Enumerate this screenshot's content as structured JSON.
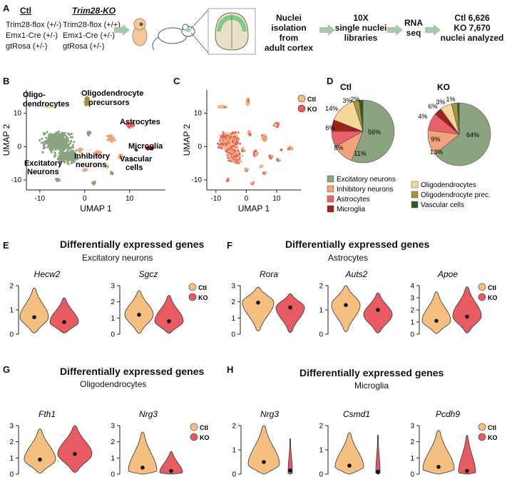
{
  "panels": {
    "A": "A",
    "B": "B",
    "C": "C",
    "D": "D",
    "E": "E",
    "F": "F",
    "G": "G",
    "H": "H"
  },
  "genotype": {
    "ctl_title": "Ctl",
    "ko_title": "Trim28-KO",
    "ctl_lines": [
      "Trim28-flox (+/-)",
      "Emx1-Cre (+/-)",
      "gtRosa (+/-)"
    ],
    "ko_lines": [
      "Trim28-flox (+/+)",
      "Emx1-Cre (+/-)",
      "gtRosa (+/-)"
    ]
  },
  "workflow": {
    "step1": "Nuclei isolation from adult cortex",
    "step1_l1": "Nuclei isolation",
    "step1_l2": "from",
    "step1_l3": "adult cortex",
    "step2_l1": "10X",
    "step2_l2": "single nuclei",
    "step2_l3": "libraries",
    "step3_l1": "RNA",
    "step3_l2": "seq",
    "step4_l1": "Ctl 6,626",
    "step4_l2": "KO 7,670",
    "step4_l3": "nuclei analyzed"
  },
  "umap_b": {
    "xlabel": "UMAP 1",
    "ylabel": "UMAP 2",
    "xticks": [
      "-10",
      "0",
      "10"
    ],
    "yticks": [
      "10",
      "0",
      "-10"
    ],
    "labels": {
      "oligo": [
        "Oligo-",
        "dendrocytes"
      ],
      "opc": [
        "Oligodendrocyte",
        "precursors"
      ],
      "astro": "Astrocytes",
      "micro": "Microglia",
      "inhib": [
        "Inhibitory",
        "neurons"
      ],
      "excit": [
        "Excitatory",
        "Neurons"
      ],
      "vasc": [
        "Vascular",
        "cells"
      ]
    }
  },
  "umap_c": {
    "xlabel": "UMAP 1",
    "ylabel": "UMAP 2",
    "xticks": [
      "-10",
      "0",
      "10"
    ],
    "yticks": [
      "10",
      "0",
      "-10"
    ],
    "legend": [
      "Ctl",
      "KO"
    ]
  },
  "pies": {
    "ctl_title": "Ctl",
    "ko_title": "KO",
    "ctl": [
      {
        "label": "Excitatory neurons",
        "pct": 56,
        "text": "56%"
      },
      {
        "label": "Inhibitory neurons",
        "pct": 11,
        "text": "11%"
      },
      {
        "label": "Astrocytes",
        "pct": 8,
        "text": "8%"
      },
      {
        "label": "Microglia",
        "pct": 6,
        "text": "6%"
      },
      {
        "label": "Oligodendrocytes",
        "pct": 14,
        "text": "14%"
      },
      {
        "label": "Oligodendrocyte prec.",
        "pct": 3,
        "text": "3%"
      },
      {
        "label": "Vascular cells",
        "pct": 2,
        "text": "2%"
      }
    ],
    "ko": [
      {
        "label": "Excitatory neurons",
        "pct": 64,
        "text": "64%"
      },
      {
        "label": "Inhibitory neurons",
        "pct": 13,
        "text": "13%"
      },
      {
        "label": "Astrocytes",
        "pct": 9,
        "text": "9%"
      },
      {
        "label": "Microglia",
        "pct": 4,
        "text": "4%"
      },
      {
        "label": "Oligodendrocytes",
        "pct": 6,
        "text": "6%"
      },
      {
        "label": "Oligodendrocyte prec.",
        "pct": 3,
        "text": "3%"
      },
      {
        "label": "Vascular cells",
        "pct": 1,
        "text": "1%"
      }
    ],
    "legend_left": [
      "Excitatory neurons",
      "Inhibitory neurons",
      "Astrocytes",
      "Microglia"
    ],
    "legend_right": [
      "Oligodendrocytes",
      "Oligodendrocyte prec.",
      "Vascular cells"
    ]
  },
  "colors": {
    "excitatory": "#8ba37f",
    "inhibitory": "#f2a37c",
    "astrocytes": "#e8606a",
    "microglia": "#a0201e",
    "oligodendrocytes": "#f6d79a",
    "opc": "#a8923a",
    "vascular": "#2d5a23",
    "ctl": "#f5c07f",
    "ko": "#e85b62"
  },
  "deg": {
    "title": "Differentially expressed genes",
    "E_sub": "Excitatory neurons",
    "F_sub": "Astrocytes",
    "G_sub": "Oligodendrocytes",
    "H_sub": "Microglia",
    "legend": [
      "Ctl",
      "KO"
    ]
  },
  "chart_data": [
    {
      "type": "violin",
      "gene": "Hecw2",
      "ylim": [
        0,
        2
      ],
      "yticks": [
        "0",
        "1",
        "2"
      ],
      "series": [
        {
          "name": "Ctl",
          "median": 0.7
        },
        {
          "name": "KO",
          "median": 0.5
        }
      ]
    },
    {
      "type": "violin",
      "gene": "Sgcz",
      "ylim": [
        0,
        3
      ],
      "yticks": [
        "0",
        "1",
        "2",
        "3"
      ],
      "series": [
        {
          "name": "Ctl",
          "median": 1.2
        },
        {
          "name": "KO",
          "median": 0.8
        }
      ]
    },
    {
      "type": "violin",
      "gene": "Rora",
      "ylim": [
        0,
        3
      ],
      "yticks": [
        "0",
        "1",
        "2",
        "3"
      ],
      "series": [
        {
          "name": "Ctl",
          "median": 1.95
        },
        {
          "name": "KO",
          "median": 1.65
        }
      ]
    },
    {
      "type": "violin",
      "gene": "Auts2",
      "ylim": [
        0,
        2
      ],
      "yticks": [
        "0",
        "1",
        "2"
      ],
      "series": [
        {
          "name": "Ctl",
          "median": 1.2
        },
        {
          "name": "KO",
          "median": 1.0
        }
      ]
    },
    {
      "type": "violin",
      "gene": "Apoe",
      "ylim": [
        0,
        4
      ],
      "yticks": [
        "0",
        "1",
        "2",
        "3",
        "4"
      ],
      "series": [
        {
          "name": "Ctl",
          "median": 1.1
        },
        {
          "name": "KO",
          "median": 1.45
        }
      ]
    },
    {
      "type": "violin",
      "gene": "Fth1",
      "ylim": [
        0,
        3
      ],
      "yticks": [
        "0",
        "1",
        "2",
        "3"
      ],
      "series": [
        {
          "name": "Ctl",
          "median": 0.9
        },
        {
          "name": "KO",
          "median": 1.25
        }
      ]
    },
    {
      "type": "violin",
      "gene": "Nrg3",
      "ylim": [
        0,
        3
      ],
      "yticks": [
        "0",
        "1",
        "2",
        "3"
      ],
      "series": [
        {
          "name": "Ctl",
          "median": 0.4
        },
        {
          "name": "KO",
          "median": 0.2
        }
      ]
    },
    {
      "type": "violin",
      "gene": "Nrg3",
      "ylim": [
        0,
        2
      ],
      "yticks": [
        "0",
        "1",
        "2"
      ],
      "series": [
        {
          "name": "Ctl",
          "median": 0.5
        },
        {
          "name": "KO",
          "median": 0.15
        }
      ]
    },
    {
      "type": "violin",
      "gene": "Csmd1",
      "ylim": [
        0,
        2
      ],
      "yticks": [
        "0",
        "1",
        "2"
      ],
      "series": [
        {
          "name": "Ctl",
          "median": 0.35
        },
        {
          "name": "KO",
          "median": 0.1
        }
      ]
    },
    {
      "type": "violin",
      "gene": "Pcdh9",
      "ylim": [
        0,
        3
      ],
      "yticks": [
        "0",
        "1",
        "2",
        "3"
      ],
      "series": [
        {
          "name": "Ctl",
          "median": 0.45
        },
        {
          "name": "KO",
          "median": 0.2
        }
      ]
    }
  ]
}
